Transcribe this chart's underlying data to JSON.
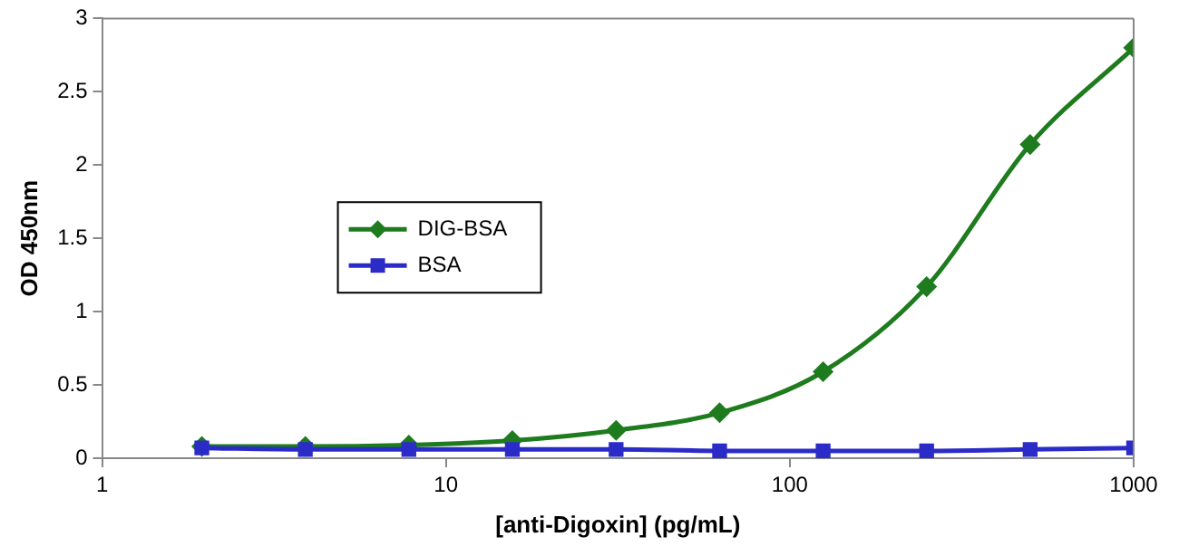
{
  "chart_data": {
    "type": "line",
    "xlabel": "[anti-Digoxin] (pg/mL)",
    "ylabel": "OD 450nm",
    "x": [
      1.95,
      3.9,
      7.8,
      15.6,
      31.25,
      62.5,
      125,
      250,
      500,
      1000
    ],
    "series": [
      {
        "name": "DIG-BSA",
        "color": "#1e7b1e",
        "marker": "diamond",
        "values": [
          0.08,
          0.08,
          0.09,
          0.12,
          0.19,
          0.31,
          0.59,
          1.17,
          2.14,
          2.8
        ]
      },
      {
        "name": "BSA",
        "color": "#2b2bc8",
        "marker": "square",
        "values": [
          0.07,
          0.06,
          0.06,
          0.06,
          0.06,
          0.05,
          0.05,
          0.05,
          0.06,
          0.07
        ]
      }
    ],
    "log": "x",
    "xlim": [
      1,
      1000
    ],
    "xticks": [
      1,
      10,
      100,
      1000
    ],
    "ylim": [
      0,
      3
    ],
    "yticks": [
      0,
      0.5,
      1,
      1.5,
      2,
      2.5,
      3
    ],
    "grid": false,
    "legend": "left",
    "line_style": "solid"
  }
}
